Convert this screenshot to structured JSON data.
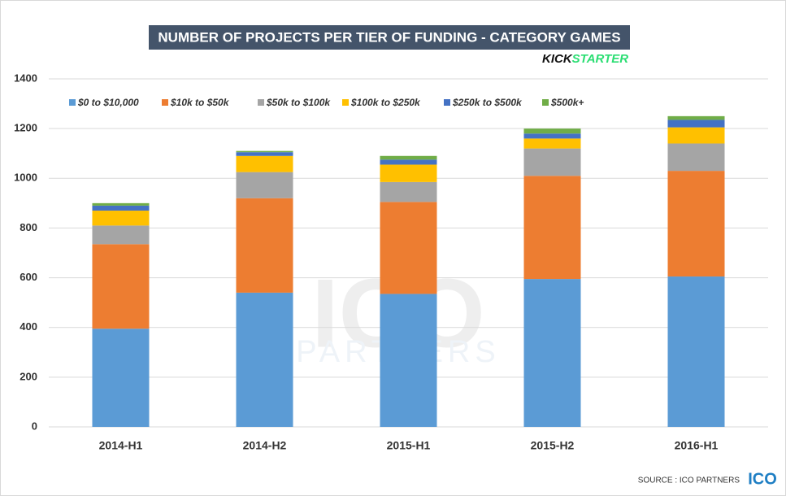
{
  "chart_data": {
    "type": "stacked_bar",
    "title": "NUMBER OF PROJECTS PER TIER OF FUNDING - CATEGORY GAMES",
    "logo": [
      "KICK",
      "STARTER"
    ],
    "source": "SOURCE : ICO PARTNERS",
    "source_logo": "ICO",
    "watermark": [
      "ICO",
      "PARTNERS"
    ],
    "categories": [
      "2014-H1",
      "2014-H2",
      "2015-H1",
      "2015-H2",
      "2016-H1"
    ],
    "series": [
      {
        "name": "$0 to $10,000",
        "color": "#5b9bd5",
        "values": [
          395,
          540,
          535,
          595,
          605
        ]
      },
      {
        "name": "$10k to $50k",
        "color": "#ed7d31",
        "values": [
          340,
          380,
          370,
          415,
          425
        ]
      },
      {
        "name": "$50k to $100k",
        "color": "#a5a5a5",
        "values": [
          75,
          105,
          80,
          110,
          110
        ]
      },
      {
        "name": "$100k to $250k",
        "color": "#ffc000",
        "values": [
          60,
          65,
          70,
          40,
          65
        ]
      },
      {
        "name": "$250k to $500k",
        "color": "#4472c4",
        "values": [
          20,
          15,
          20,
          20,
          30
        ]
      },
      {
        "name": "$500k+",
        "color": "#70ad47",
        "values": [
          10,
          5,
          15,
          20,
          15
        ]
      }
    ],
    "ylim": [
      0,
      1400
    ],
    "yticks": [
      0,
      200,
      400,
      600,
      800,
      1000,
      1200,
      1400
    ],
    "grid": true,
    "legend": "top-left"
  }
}
